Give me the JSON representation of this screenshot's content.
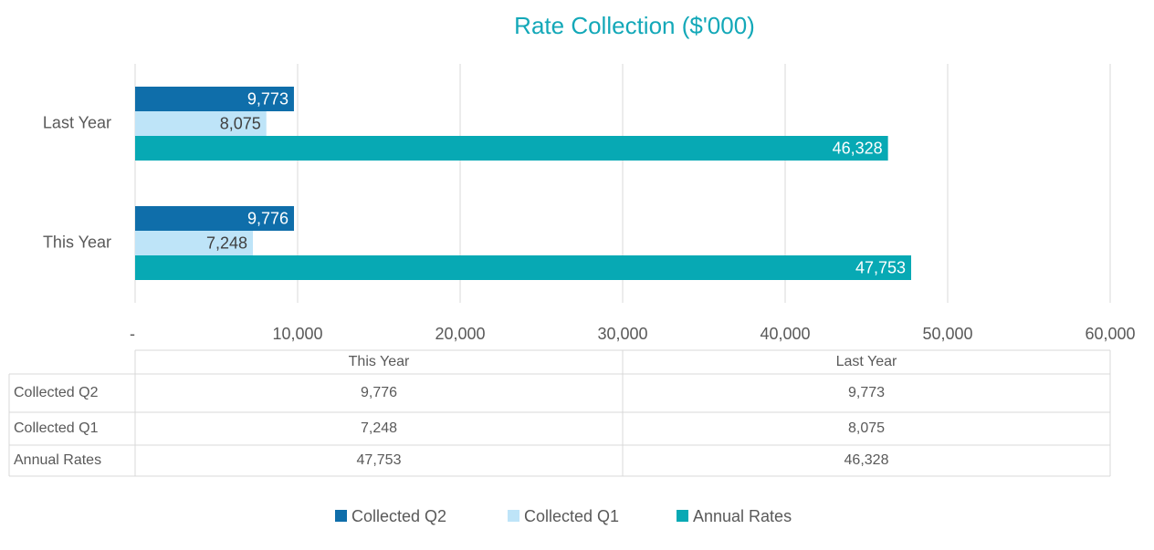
{
  "chart_data": {
    "type": "bar",
    "orientation": "horizontal",
    "title": "Rate Collection ($'000)",
    "categories": [
      "This Year",
      "Last Year"
    ],
    "series": [
      {
        "name": "Collected Q2",
        "color": "#0f6eaa",
        "values": [
          9776,
          9773
        ],
        "value_labels": [
          "9,776",
          "9,773"
        ]
      },
      {
        "name": "Collected Q1",
        "color": "#bee4f8",
        "values": [
          7248,
          8075
        ],
        "value_labels": [
          "7,248",
          "8,075"
        ]
      },
      {
        "name": "Annual Rates",
        "color": "#07a9b4",
        "values": [
          47753,
          46328
        ],
        "value_labels": [
          "47,753",
          "46,328"
        ]
      }
    ],
    "xlim": [
      0,
      60000
    ],
    "xticks": [
      {
        "value": 0,
        "label": "-"
      },
      {
        "value": 10000,
        "label": "10,000"
      },
      {
        "value": 20000,
        "label": "20,000"
      },
      {
        "value": 30000,
        "label": "30,000"
      },
      {
        "value": 40000,
        "label": "40,000"
      },
      {
        "value": 50000,
        "label": "50,000"
      },
      {
        "value": 60000,
        "label": "60,000"
      }
    ],
    "grid": true,
    "legend": "bottom",
    "data_table": true
  }
}
